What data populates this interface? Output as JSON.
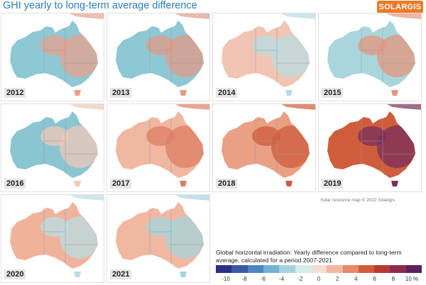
{
  "title": "GHI yearly to long-term average difference",
  "logo": "SOLARGIS",
  "maps": [
    {
      "year": "2012",
      "tone": "#8ec8d4",
      "accent": "#e7a28d"
    },
    {
      "year": "2013",
      "tone": "#8ec8d4",
      "accent": "#e39b86"
    },
    {
      "year": "2014",
      "tone": "#f1c4b3",
      "accent": "#b7dde2"
    },
    {
      "year": "2015",
      "tone": "#a9d6dc",
      "accent": "#e5967e"
    },
    {
      "year": "2016",
      "tone": "#8bc5d2",
      "accent": "#f0c8b8"
    },
    {
      "year": "2017",
      "tone": "#f0b7a1",
      "accent": "#e07d61"
    },
    {
      "year": "2018",
      "tone": "#e9a085",
      "accent": "#cf5b3c"
    },
    {
      "year": "2019",
      "tone": "#cf5d3c",
      "accent": "#7a2f5c"
    },
    {
      "year": "2020",
      "tone": "#efb39c",
      "accent": "#b9dde2"
    },
    {
      "year": "2021",
      "tone": "#f0b8a1",
      "accent": "#a6d4dc"
    }
  ],
  "credit": "Solar resource map © 2022 Solargis",
  "legend": {
    "text": "Global horizontal irradiation: Yearly difference compared to long-term average, calculated for a period 2007-2021",
    "colors": [
      "#2c2f83",
      "#3d58a6",
      "#4c86c3",
      "#6fb2d3",
      "#a3d3df",
      "#d6ecef",
      "#f4ddd3",
      "#f2b7a2",
      "#e8896c",
      "#d35b3c",
      "#b83a2f",
      "#8e2a4c",
      "#5e1f5e"
    ],
    "ticks": [
      "-10",
      "-8",
      "-6",
      "-4",
      "-2",
      "0",
      "2",
      "4",
      "6",
      "8",
      "10 %"
    ]
  }
}
